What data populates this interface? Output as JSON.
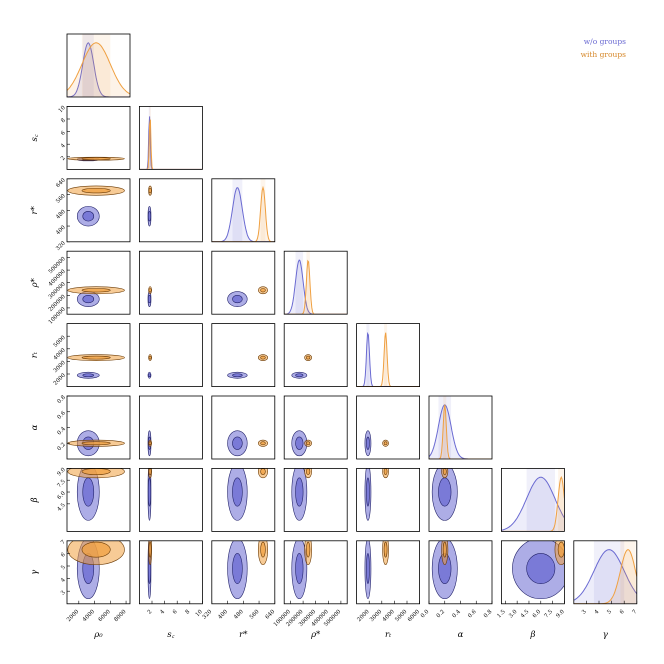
{
  "chart_data": {
    "type": "corner",
    "title": "",
    "parameters": [
      {
        "symbol": "ρ₀",
        "label": "ρ0",
        "range": [
          500,
          8500
        ],
        "ticks": [
          "2000",
          "4000",
          "6000",
          "8000"
        ]
      },
      {
        "symbol": "s꜀",
        "label": "sc",
        "range": [
          0,
          10
        ],
        "ticks": [
          "2",
          "4",
          "6",
          "8",
          "10"
        ],
        "yticks": [
          "2",
          "4",
          "6",
          "8",
          "10"
        ]
      },
      {
        "symbol": "r*",
        "label": "r*",
        "range": [
          320,
          640
        ],
        "ticks": [
          "320",
          "400",
          "480",
          "560",
          "640"
        ],
        "yticks": [
          "320",
          "400",
          "480",
          "560",
          "640"
        ]
      },
      {
        "symbol": "ρ*",
        "label": "ρ*",
        "range": [
          50000,
          550000
        ],
        "ticks": [
          "100000",
          "200000",
          "300000",
          "400000",
          "500000"
        ],
        "yticks": [
          "100000",
          "200000",
          "300000",
          "400000",
          "500000"
        ]
      },
      {
        "symbol": "rₜ",
        "label": "rt",
        "range": [
          1000,
          6000
        ],
        "ticks": [
          "2000",
          "3000",
          "4000",
          "5000",
          "6000"
        ],
        "yticks": [
          "2000",
          "3000",
          "4000",
          "5000"
        ]
      },
      {
        "symbol": "α",
        "label": "α",
        "range": [
          0,
          0.8
        ],
        "ticks": [
          "0.0",
          "0.2",
          "0.4",
          "0.6",
          "0.8"
        ],
        "yticks": [
          "0.2",
          "0.4",
          "0.6",
          "0.8"
        ]
      },
      {
        "symbol": "β",
        "label": "β",
        "range": [
          1,
          9
        ],
        "ticks": [
          "1.5",
          "3.0",
          "4.5",
          "6.0",
          "7.5",
          "9.0"
        ],
        "yticks": [
          "4.5",
          "6.0",
          "7.5",
          "9.0"
        ]
      },
      {
        "symbol": "γ",
        "label": "γ",
        "range": [
          2,
          7
        ],
        "ticks": [
          "3",
          "4",
          "5",
          "6",
          "7"
        ],
        "yticks": [
          "3",
          "4",
          "5",
          "6",
          "7"
        ]
      }
    ],
    "series": [
      {
        "name": "w/o groups",
        "color": "#6a6ad2",
        "mean": [
          3200,
          1.6,
          450,
          170000,
          1900,
          0.2,
          6.0,
          4.8
        ],
        "std": [
          700,
          0.12,
          25,
          30000,
          120,
          0.08,
          1.8,
          1.2
        ]
      },
      {
        "name": "with groups",
        "color": "#f0a040",
        "mean": [
          4200,
          1.7,
          580,
          240000,
          3300,
          0.2,
          8.6,
          6.3
        ],
        "std": [
          1800,
          0.12,
          12,
          14000,
          120,
          0.02,
          0.4,
          0.6
        ]
      }
    ],
    "legend": [
      "w/o groups",
      "with groups"
    ],
    "legend_position": "top-right"
  }
}
